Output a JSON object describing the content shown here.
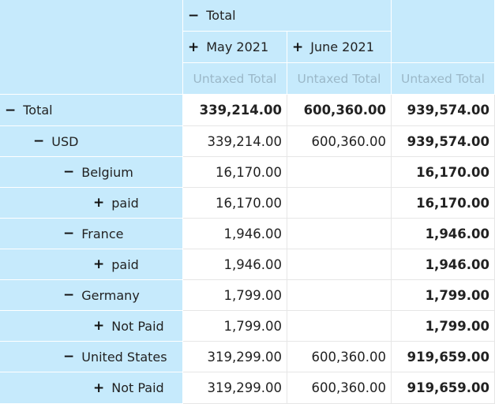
{
  "col_headers": {
    "total": {
      "icon": "minus-icon",
      "glyph": "−",
      "label": "Total"
    },
    "may": {
      "icon": "plus-icon",
      "glyph": "+",
      "label": "May 2021"
    },
    "june": {
      "icon": "plus-icon",
      "glyph": "+",
      "label": "June 2021"
    },
    "measures": [
      "Untaxed Total",
      "Untaxed Total",
      "Untaxed Total"
    ]
  },
  "rows": [
    {
      "label": "Total",
      "icon": "minus-icon",
      "glyph": "−",
      "values": [
        "339,214.00",
        "600,360.00",
        "939,574.00"
      ]
    },
    {
      "label": "USD",
      "icon": "minus-icon",
      "glyph": "−",
      "values": [
        "339,214.00",
        "600,360.00",
        "939,574.00"
      ]
    },
    {
      "label": "Belgium",
      "icon": "minus-icon",
      "glyph": "−",
      "values": [
        "16,170.00",
        "",
        "16,170.00"
      ]
    },
    {
      "label": "paid",
      "icon": "plus-icon",
      "glyph": "+",
      "values": [
        "16,170.00",
        "",
        "16,170.00"
      ]
    },
    {
      "label": "France",
      "icon": "minus-icon",
      "glyph": "−",
      "values": [
        "1,946.00",
        "",
        "1,946.00"
      ]
    },
    {
      "label": "paid",
      "icon": "plus-icon",
      "glyph": "+",
      "values": [
        "1,946.00",
        "",
        "1,946.00"
      ]
    },
    {
      "label": "Germany",
      "icon": "minus-icon",
      "glyph": "−",
      "values": [
        "1,799.00",
        "",
        "1,799.00"
      ]
    },
    {
      "label": "Not Paid",
      "icon": "plus-icon",
      "glyph": "+",
      "values": [
        "1,799.00",
        "",
        "1,799.00"
      ]
    },
    {
      "label": "United States",
      "icon": "minus-icon",
      "glyph": "−",
      "values": [
        "319,299.00",
        "600,360.00",
        "919,659.00"
      ]
    },
    {
      "label": "Not Paid",
      "icon": "plus-icon",
      "glyph": "+",
      "values": [
        "319,299.00",
        "600,360.00",
        "919,659.00"
      ]
    }
  ]
}
